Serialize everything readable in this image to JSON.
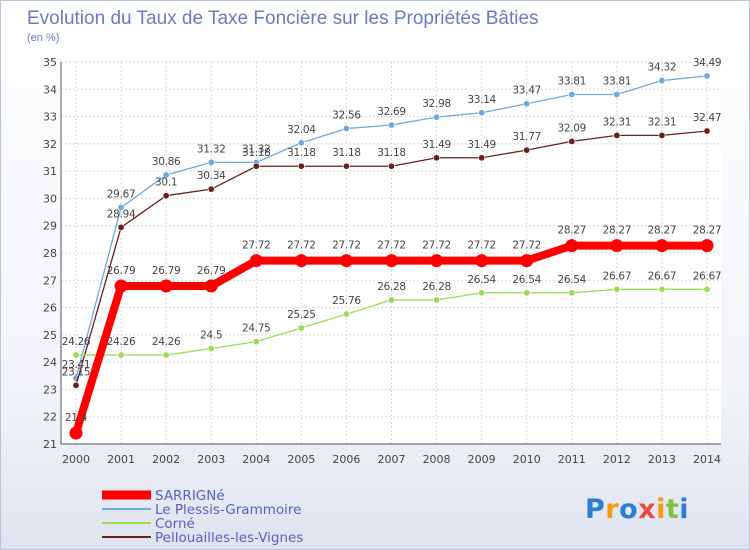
{
  "chart_data": {
    "type": "line",
    "title": "Evolution du Taux de Taxe Foncière sur les Propriétés Bâties",
    "subtitle": "(en %)",
    "x": [
      "2000",
      "2001",
      "2002",
      "2003",
      "2004",
      "2005",
      "2006",
      "2007",
      "2008",
      "2009",
      "2010",
      "2011",
      "2012",
      "2013",
      "2014"
    ],
    "ylim": [
      21,
      35
    ],
    "yticks": [
      "21",
      "22",
      "23",
      "24",
      "25",
      "26",
      "27",
      "28",
      "29",
      "30",
      "31",
      "32",
      "33",
      "34",
      "35"
    ],
    "grid": true,
    "legend_position": "bottom-left",
    "series": [
      {
        "name": "SARRIGNé",
        "color": "#ff0000",
        "values": [
          21.4,
          26.79,
          26.79,
          26.79,
          27.72,
          27.72,
          27.72,
          27.72,
          27.72,
          27.72,
          27.72,
          28.27,
          28.27,
          28.27,
          28.27
        ],
        "labels": [
          "21.4",
          "26.79",
          "26.79",
          "26.79",
          "27.72",
          "27.72",
          "27.72",
          "27.72",
          "27.72",
          "27.72",
          "27.72",
          "28.27",
          "28.27",
          "28.27",
          "28.27"
        ]
      },
      {
        "name": "Le Plessis-Grammoire",
        "color": "#6fa8dc",
        "values": [
          23.41,
          29.67,
          30.86,
          31.32,
          31.32,
          32.04,
          32.56,
          32.69,
          32.98,
          33.14,
          33.47,
          33.81,
          33.81,
          34.32,
          34.49
        ],
        "labels": [
          "23.41",
          "29.67",
          "30.86",
          "31.32",
          "31.32",
          "32.04",
          "32.56",
          "32.69",
          "32.98",
          "33.14",
          "33.47",
          "33.81",
          "33.81",
          "34.32",
          "34.49"
        ]
      },
      {
        "name": "Corné",
        "color": "#99dd55",
        "values": [
          24.26,
          24.26,
          24.26,
          24.5,
          24.75,
          25.25,
          25.76,
          26.28,
          26.28,
          26.54,
          26.54,
          26.54,
          26.67,
          26.67,
          26.67
        ],
        "labels": [
          "24.26",
          "24.26",
          "24.26",
          "24.5",
          "24.75",
          "25.25",
          "25.76",
          "26.28",
          "26.28",
          "26.54",
          "26.54",
          "26.54",
          "26.67",
          "26.67",
          "26.67"
        ]
      },
      {
        "name": "Pellouailles-les-Vignes",
        "color": "#6b1f1f",
        "values": [
          23.15,
          28.94,
          30.1,
          30.34,
          31.18,
          31.18,
          31.18,
          31.18,
          31.49,
          31.49,
          31.77,
          32.09,
          32.31,
          32.31,
          32.47
        ],
        "labels": [
          "23.15",
          "28.94",
          "30.1",
          "30.34",
          "31.18",
          "31.18",
          "31.18",
          "31.18",
          "31.49",
          "31.49",
          "31.77",
          "32.09",
          "32.31",
          "32.31",
          "32.47"
        ]
      }
    ]
  },
  "branding": {
    "logo_text": "Proxiti",
    "letter_colors": [
      "#2a7fd4",
      "#f39c12",
      "#2a7fd4",
      "#e74c3c",
      "#f39c12",
      "#7dc242",
      "#2a7fd4"
    ]
  }
}
